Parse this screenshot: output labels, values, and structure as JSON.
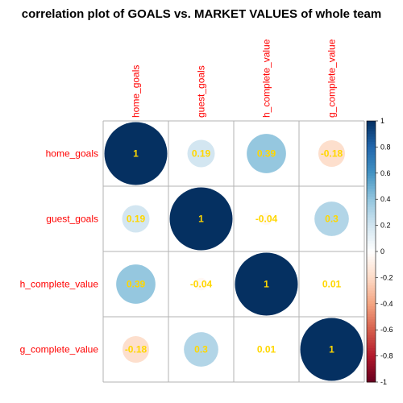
{
  "chart_data": {
    "type": "heatmap",
    "title": "correlation plot of GOALS vs. MARKET VALUES of whole team",
    "variables": [
      "home_goals",
      "guest_goals",
      "h_complete_value",
      "g_complete_value"
    ],
    "matrix": [
      [
        1,
        0.19,
        0.39,
        -0.18
      ],
      [
        0.19,
        1,
        -0.04,
        0.3
      ],
      [
        0.39,
        -0.04,
        1,
        0.01
      ],
      [
        -0.18,
        0.3,
        0.01,
        1
      ]
    ],
    "value_labels": [
      [
        "1",
        "0.19",
        "0.39",
        "-0.18"
      ],
      [
        "0.19",
        "1",
        "-0.04",
        "0.3"
      ],
      [
        "0.39",
        "-0.04",
        "1",
        "0.01"
      ],
      [
        "-0.18",
        "0.3",
        "0.01",
        "1"
      ]
    ],
    "colorbar_ticks": [
      "1",
      "0.8",
      "0.6",
      "0.4",
      "0.2",
      "0",
      "-0.2",
      "-0.4",
      "-0.6",
      "-0.8",
      "-1"
    ],
    "colorbar_range": [
      -1,
      1
    ],
    "label_color": "#ff0000",
    "value_text_color": "#ffd700",
    "grid_color": "#b3b3b3",
    "color_scale": [
      "#67001f",
      "#b2182b",
      "#d6604d",
      "#f4a582",
      "#fddbc7",
      "#ffffff",
      "#d1e5f0",
      "#92c5de",
      "#4393c3",
      "#2166ac",
      "#053061"
    ]
  }
}
